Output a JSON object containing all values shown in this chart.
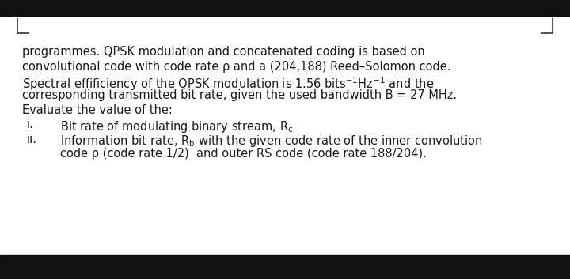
{
  "background_color": "#ffffff",
  "top_bar_color": "#111111",
  "bottom_bar_color": "#111111",
  "bracket_color": "#555555",
  "text_color": "#1a1a1a",
  "font_size": 10.5,
  "line1": "programmes. QPSK modulation and concatenated coding is based on",
  "line2": "convolutional code with code rate ρ and a (204,188) Reed–Solomon code.",
  "line3": "Spectral effificiency of the QPSK modulation is 1.56 bits⁻¹Hz⁻¹ and the",
  "line4": "corresponding transmitted bit rate, given the used bandwidth B = 27 MHz.",
  "line5": "Evaluate the value of the:",
  "roman_i": "i.",
  "roman_ii": "ii.",
  "item_i_text": "Bit rate of modulating binary stream, R",
  "item_i_sub": "c",
  "item_ii_text1": "Information bit rate, R",
  "item_ii_sub": "b",
  "item_ii_text2": " with the given code rate of the inner convolution",
  "item_ii_line2": "code ρ (code rate 1/2)  and outer RS code (code rate 188/204)."
}
